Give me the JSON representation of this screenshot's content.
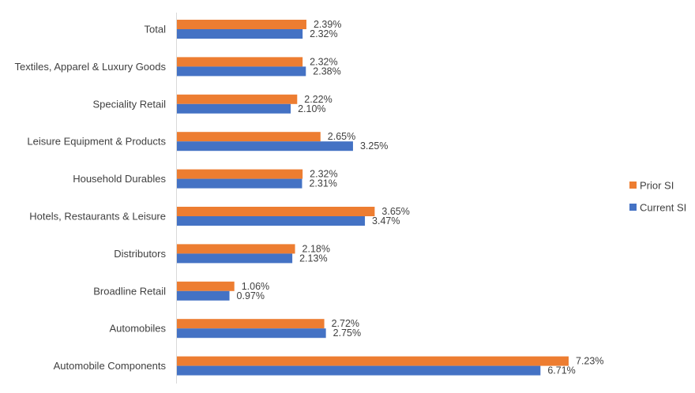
{
  "chart_data": {
    "type": "bar",
    "orientation": "horizontal",
    "categories": [
      "Total",
      "Textiles, Apparel & Luxury Goods",
      "Speciality Retail",
      "Leisure Equipment & Products",
      "Household Durables",
      "Hotels, Restaurants & Leisure",
      "Distributors",
      "Broadline Retail",
      "Automobiles",
      "Automobile Components"
    ],
    "series": [
      {
        "name": "Prior SI",
        "color": "#ED7D31",
        "values": [
          2.39,
          2.32,
          2.22,
          2.65,
          2.32,
          3.65,
          2.18,
          1.06,
          2.72,
          7.23
        ],
        "labels": [
          "2.39%",
          "2.32%",
          "2.22%",
          "2.65%",
          "2.32%",
          "3.65%",
          "2.18%",
          "1.06%",
          "2.72%",
          "7.23%"
        ]
      },
      {
        "name": "Current SI",
        "color": "#4472C4",
        "values": [
          2.32,
          2.38,
          2.1,
          3.25,
          2.31,
          3.47,
          2.13,
          0.97,
          2.75,
          6.71
        ],
        "labels": [
          "2.32%",
          "2.38%",
          "2.10%",
          "3.25%",
          "2.31%",
          "3.47%",
          "2.13%",
          "0.97%",
          "2.75%",
          "6.71%"
        ]
      }
    ],
    "xlim": [
      0,
      8
    ],
    "legend_position": "right",
    "grid": false
  }
}
